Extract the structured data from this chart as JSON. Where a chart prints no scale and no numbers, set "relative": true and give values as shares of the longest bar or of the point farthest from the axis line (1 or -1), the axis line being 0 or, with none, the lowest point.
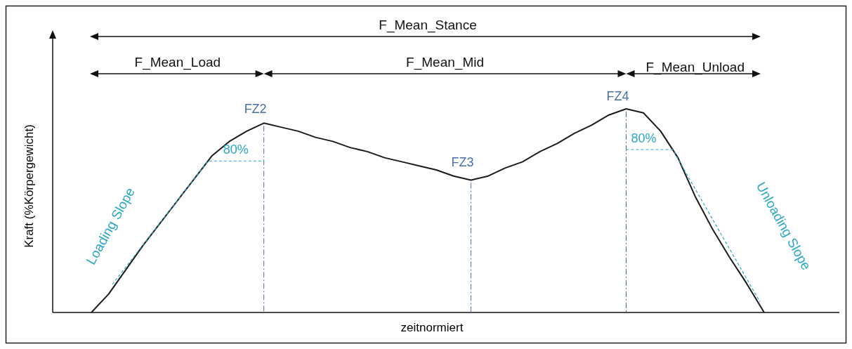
{
  "chart_data": {
    "type": "line",
    "relative": true,
    "xlabel": "zeitnormiert",
    "ylabel": "Kraft (%Körpergewicht)",
    "annotations": [
      "F_Mean_Stance",
      "F_Mean_Load",
      "F_Mean_Mid",
      "F_Mean_Unload",
      "FZ2",
      "FZ3",
      "FZ4",
      "80%",
      "80%",
      "Loading Slope",
      "Unloading Slope"
    ],
    "categories": [
      null,
      null,
      null,
      null,
      null,
      null,
      null,
      null,
      null,
      null,
      null,
      null,
      null,
      null,
      null,
      null,
      null,
      null,
      null,
      null,
      null,
      null,
      null,
      null,
      null,
      null,
      null,
      null,
      null,
      null,
      null,
      null,
      null,
      null,
      null,
      null,
      null,
      null,
      null,
      null
    ],
    "series": [
      {
        "color": "#1a1a1a",
        "values": [
          0,
          0.09,
          0.21,
          0.33,
          0.44,
          0.55,
          0.66,
          0.77,
          0.84,
          0.89,
          0.93,
          0.91,
          0.89,
          0.86,
          0.84,
          0.81,
          0.79,
          0.76,
          0.74,
          0.72,
          0.7,
          0.67,
          0.65,
          0.67,
          0.71,
          0.74,
          0.79,
          0.83,
          0.88,
          0.92,
          0.97,
          1.0,
          0.98,
          0.89,
          0.76,
          0.57,
          0.41,
          0.27,
          0.14,
          0
        ]
      }
    ]
  }
}
